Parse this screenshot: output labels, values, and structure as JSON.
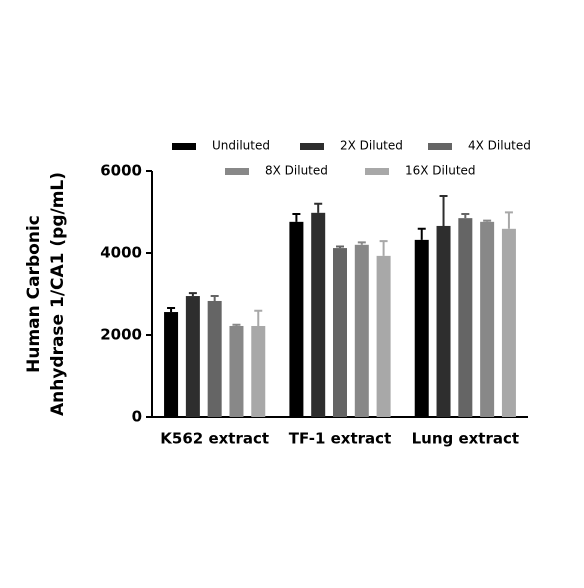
{
  "chart_data": {
    "type": "bar",
    "y_label": [
      "Human Carbonic",
      "Anhydrase 1/CA1 (pg/mL)"
    ],
    "categories": [
      "K562 extract",
      "TF-1 extract",
      "Lung extract"
    ],
    "series": [
      {
        "name": "Undiluted",
        "color": "#000000",
        "values": [
          2560,
          4760,
          4320
        ],
        "errors": [
          100,
          190,
          270
        ]
      },
      {
        "name": "2X Diluted",
        "color": "#2e2e2e",
        "values": [
          2950,
          4980,
          4660
        ],
        "errors": [
          70,
          220,
          730
        ]
      },
      {
        "name": "4X Diluted",
        "color": "#656565",
        "values": [
          2830,
          4120,
          4850
        ],
        "errors": [
          120,
          40,
          100
        ]
      },
      {
        "name": "8X Diluted",
        "color": "#888888",
        "values": [
          2220,
          4200,
          4760
        ],
        "errors": [
          30,
          60,
          30
        ]
      },
      {
        "name": "16X Diluted",
        "color": "#a8a8a8",
        "values": [
          2220,
          3930,
          4590
        ],
        "errors": [
          370,
          360,
          400
        ]
      }
    ],
    "ylim": [
      0,
      6000
    ],
    "yticks": [
      0,
      2000,
      4000,
      6000
    ],
    "grid": false
  }
}
